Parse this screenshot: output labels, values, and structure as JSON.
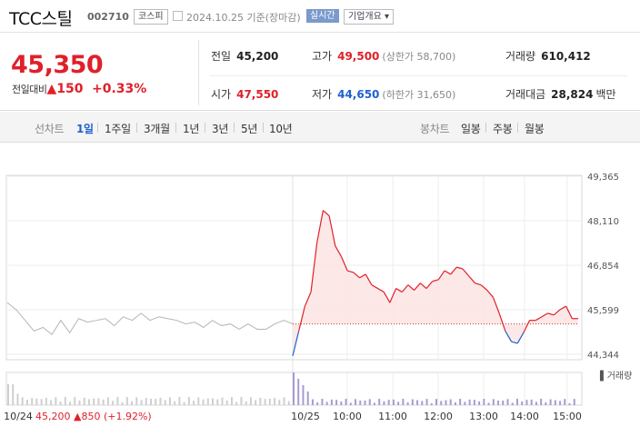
{
  "header": {
    "company": "TCC스틸",
    "code": "002710",
    "market": "코스피",
    "as_of": "2024.10.25  기준(장마감)",
    "realtime": "실시간",
    "overview": "기업개요 ▾"
  },
  "quote": {
    "price": "45,350",
    "change_label": "전일대비",
    "change_arrow": "▲",
    "change_amount": "150",
    "change_percent": "+0.33%",
    "prev_close_label": "전일",
    "prev_close": "45,200",
    "high_label": "고가",
    "high": "49,500",
    "upper_limit": "(상한가 58,700)",
    "volume_label": "거래량",
    "volume": "610,412",
    "open_label": "시가",
    "open": "47,550",
    "low_label": "저가",
    "low": "44,650",
    "lower_limit": "(하한가 31,650)",
    "value_label": "거래대금",
    "value": "28,824",
    "value_unit": "백만"
  },
  "tabs": {
    "line_label": "선차트",
    "day1": "1일",
    "week1": "1주일",
    "month3": "3개월",
    "year1": "1년",
    "year3": "3년",
    "year5": "5년",
    "year10": "10년",
    "candle_label": "봉차트",
    "daily": "일봉",
    "weekly": "주봉",
    "monthly": "월봉"
  },
  "chart_data": {
    "type": "line",
    "y_ticks": [
      "49,365",
      "48,110",
      "46,854",
      "45,599",
      "44,344"
    ],
    "y_tick_values": [
      49365,
      48110,
      46854,
      45599,
      44344
    ],
    "x_ticks": [
      "10/24",
      "10/25",
      "10:00",
      "11:00",
      "12:00",
      "13:00",
      "14:00",
      "15:00"
    ],
    "volume_label": "거래량",
    "baseline": 45200,
    "prev_day_label": "10/24",
    "prev_day_close": "45,200",
    "prev_day_change": "▲850",
    "prev_day_percent": "(+1.92%)",
    "colors": {
      "up": "#e0202a",
      "down": "#1e60d0",
      "prev": "#b5b5b5",
      "fill": "#fde4e4",
      "volume_today": "#a79bd2",
      "volume_prev": "#cfcfcf"
    },
    "series": [
      {
        "values": [
          44300,
          45000,
          45700,
          46100,
          47500,
          48400,
          48250,
          47400,
          47100,
          46700,
          46650,
          46500,
          46600,
          46300,
          46200,
          46100,
          45800,
          46200,
          46100,
          46300,
          46150,
          46350,
          46200,
          46400,
          46450,
          46700,
          46600,
          46800,
          46750,
          46550,
          46350,
          46300,
          46150,
          45950,
          45500,
          45000,
          44700,
          44650,
          44950,
          45300,
          45300,
          45400,
          45500,
          45450,
          45600,
          45700,
          45350,
          45350
        ]
      }
    ],
    "prev_day_series": [
      {
        "values": [
          45800,
          45600,
          45300,
          45000,
          45100,
          44900,
          45300,
          44950,
          45350,
          45250,
          45300,
          45350,
          45150,
          45400,
          45300,
          45500,
          45300,
          45400,
          45350,
          45300,
          45200,
          45250,
          45100,
          45300,
          45150,
          45200,
          45050,
          45200,
          45050,
          45050,
          45200,
          45300,
          45200
        ]
      }
    ]
  }
}
